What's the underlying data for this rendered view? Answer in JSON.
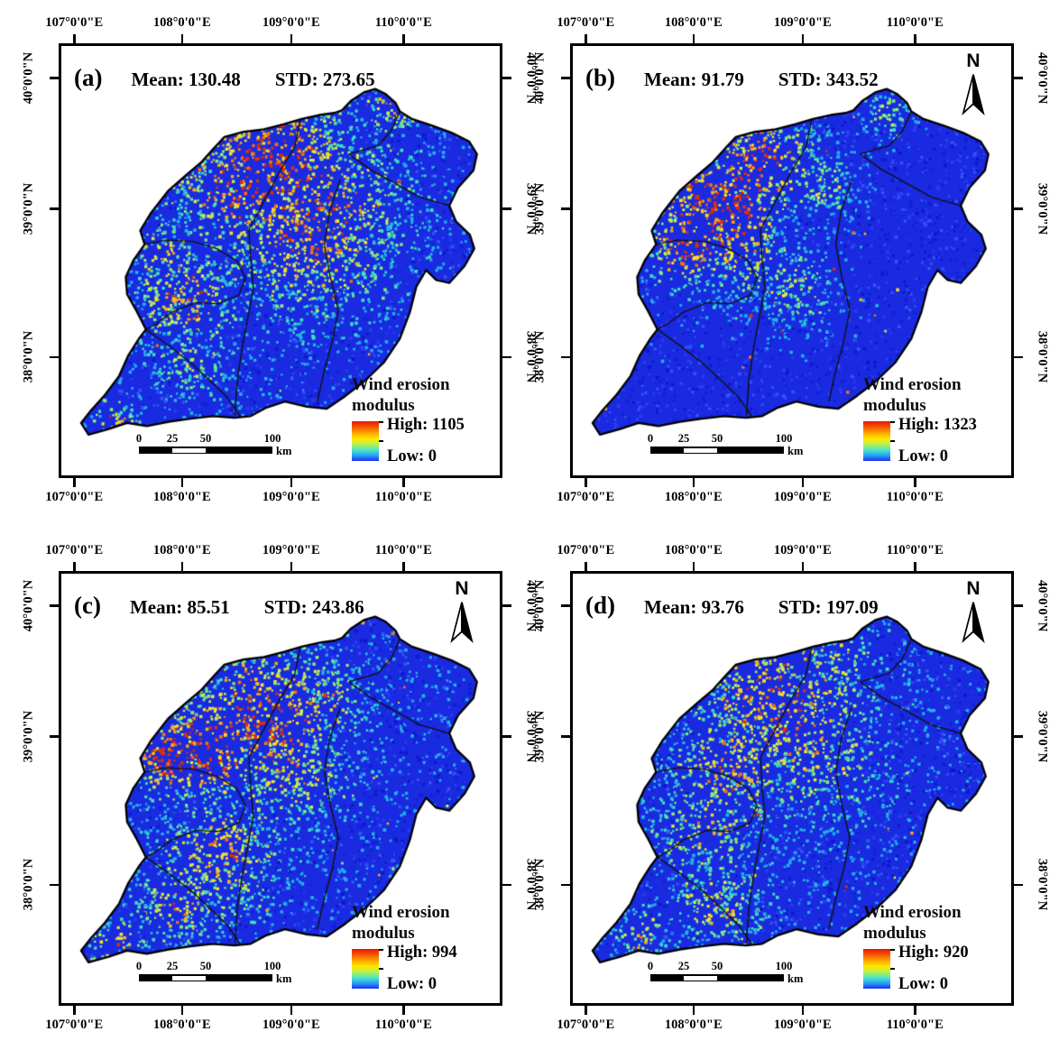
{
  "figure": {
    "variable": "Wind erosion modulus",
    "north_label": "N",
    "axis": {
      "x_labels": [
        "107°0'0\"E",
        "108°0'0\"E",
        "109°0'0\"E",
        "110°0'0\"E"
      ],
      "y_labels": [
        "40°0'0\"N",
        "39°0'0\"N",
        "38°0'0\"N"
      ]
    },
    "scalebar": {
      "ticks": [
        "0",
        "25",
        "50",
        "100"
      ],
      "unit": "km"
    },
    "legend_colors": {
      "high": "#e31505",
      "low": "#1c2df2",
      "base_map_blue": "#1a2ae0"
    },
    "panels": [
      {
        "id": "a",
        "label": "(a)",
        "mean_label": "Mean: 130.48",
        "std_label": "STD: 273.65",
        "mean": 130.48,
        "std": 273.65,
        "legend": {
          "title_line1": "Wind erosion",
          "title_line2": "modulus",
          "high_label": "High: 1105",
          "low_label": "Low: 0",
          "high": 1105,
          "low": 0
        },
        "has_north_arrow": false
      },
      {
        "id": "b",
        "label": "(b)",
        "mean_label": "Mean: 91.79",
        "std_label": "STD: 343.52",
        "mean": 91.79,
        "std": 343.52,
        "legend": {
          "title_line1": "Wind erosion",
          "title_line2": "modulus",
          "high_label": "High: 1323",
          "low_label": "Low: 0",
          "high": 1323,
          "low": 0
        },
        "has_north_arrow": true
      },
      {
        "id": "c",
        "label": "(c)",
        "mean_label": "Mean: 85.51",
        "std_label": "STD: 243.86",
        "mean": 85.51,
        "std": 243.86,
        "legend": {
          "title_line1": "Wind erosion",
          "title_line2": "modulus",
          "high_label": "High: 994",
          "low_label": "Low: 0",
          "high": 994,
          "low": 0
        },
        "has_north_arrow": true
      },
      {
        "id": "d",
        "label": "(d)",
        "mean_label": "Mean: 93.76",
        "std_label": "STD: 197.09",
        "mean": 93.76,
        "std": 197.09,
        "legend": {
          "title_line1": "Wind erosion",
          "title_line2": "modulus",
          "high_label": "High: 920",
          "low_label": "Low: 0",
          "high": 920,
          "low": 0
        },
        "has_north_arrow": true
      }
    ]
  }
}
